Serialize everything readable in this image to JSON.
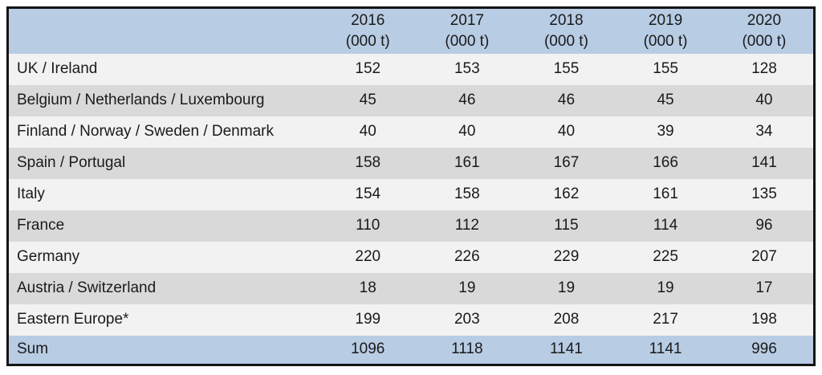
{
  "chart_data": {
    "type": "table",
    "unit_note": "(000 t)",
    "column_headers": [
      {
        "year": "2016",
        "unit": "(000 t)"
      },
      {
        "year": "2017",
        "unit": "(000 t)"
      },
      {
        "year": "2018",
        "unit": "(000 t)"
      },
      {
        "year": "2019",
        "unit": "(000 t)"
      },
      {
        "year": "2020",
        "unit": "(000 t)"
      }
    ],
    "rows": [
      {
        "label": "UK / Ireland",
        "values": [
          "152",
          "153",
          "155",
          "155",
          "128"
        ]
      },
      {
        "label": "Belgium / Netherlands / Luxembourg",
        "values": [
          "45",
          "46",
          "46",
          "45",
          "40"
        ]
      },
      {
        "label": "Finland / Norway / Sweden / Denmark",
        "values": [
          "40",
          "40",
          "40",
          "39",
          "34"
        ]
      },
      {
        "label": "Spain / Portugal",
        "values": [
          "158",
          "161",
          "167",
          "166",
          "141"
        ]
      },
      {
        "label": "Italy",
        "values": [
          "154",
          "158",
          "162",
          "161",
          "135"
        ]
      },
      {
        "label": "France",
        "values": [
          "110",
          "112",
          "115",
          "114",
          "96"
        ]
      },
      {
        "label": "Germany",
        "values": [
          "220",
          "226",
          "229",
          "225",
          "207"
        ]
      },
      {
        "label": "Austria / Switzerland",
        "values": [
          "18",
          "19",
          "19",
          "19",
          "17"
        ]
      },
      {
        "label": "Eastern Europe*",
        "values": [
          "199",
          "203",
          "208",
          "217",
          "198"
        ]
      }
    ],
    "sum_row": {
      "label": "Sum",
      "values": [
        "1096",
        "1118",
        "1141",
        "1141",
        "996"
      ]
    }
  },
  "colors": {
    "header_bg": "#b8cce4",
    "sum_bg": "#b8cce4",
    "row_light": "#f2f2f2",
    "row_dark": "#d9d9d9",
    "border": "#141414",
    "text": "#1a1a1a"
  }
}
